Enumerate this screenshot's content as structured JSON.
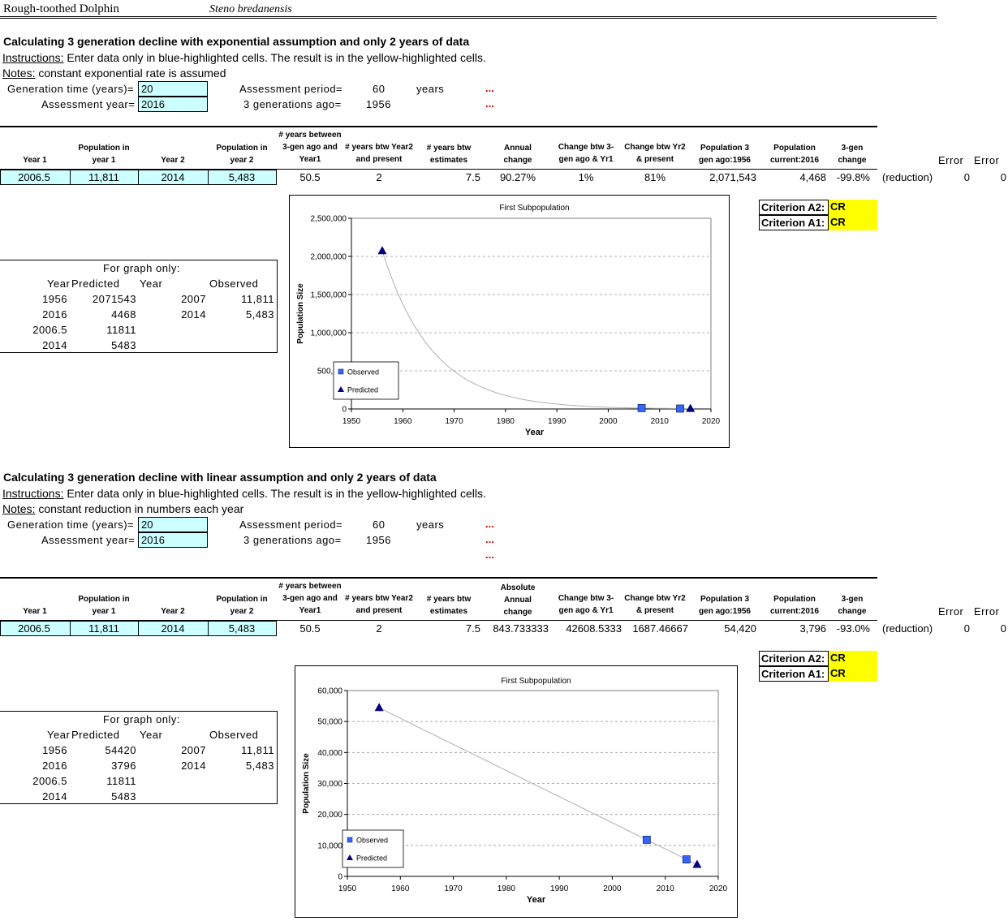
{
  "header": {
    "common_name": "Rough-toothed Dolphin",
    "scientific_name": "Steno bredanensis"
  },
  "labels": {
    "instructions_prefix": "Instructions:",
    "instructions_text": " Enter data only in blue-highlighted cells.  The result is in the yellow-highlighted cells.",
    "notes_prefix": "Notes:",
    "gen_time": "Generation time (years)=",
    "assess_year": "Assessment year=",
    "assess_period": "Assessment period=",
    "three_gen_ago": "3 generations ago=",
    "years": "years",
    "dots": "...",
    "error": "Error",
    "reduction": "(reduction)",
    "graph_only": "For graph only:",
    "g_year": "Year",
    "g_predicted": "Predicted",
    "g_observed": "Observed",
    "crit_a2": "Criterion A2:",
    "crit_a1": "Criterion A1:",
    "h_year1": "Year 1",
    "h_pop_y1_a": "Population in",
    "h_pop_y1_b": "year 1",
    "h_year2": "Year 2",
    "h_pop_y2_a": "Population in",
    "h_pop_y2_b": "year 2",
    "h_yrs_btw_a": "# years between",
    "h_yrs_btw_b": "3-gen ago and",
    "h_yrs_btw_c": "Year1",
    "h_yrs_y2_a": "# years btw Year2",
    "h_yrs_y2_b": "and present",
    "h_yrs_est_a": "# years btw",
    "h_yrs_est_b": "estimates",
    "h_annual_a": "Annual",
    "h_annual_b": "change",
    "h_abs": "Absolute",
    "h_chg3_a": "Change btw 3-",
    "h_chg3_b": "gen ago & Yr1",
    "h_chgy2_a": "Change btw Yr2",
    "h_chgy2_b": "& present",
    "h_pop3_a": "Population 3",
    "h_pop3_b": "gen ago:1956",
    "h_popc_a": "Population",
    "h_popc_b": "current:2016",
    "h_3gen_a": "3-gen",
    "h_3gen_b": "change"
  },
  "sections": [
    {
      "title": "Calculating 3 generation decline with exponential assumption and only 2 years of data",
      "notes": " constant exponential rate is assumed",
      "gen_time": "20",
      "assess_year": "2016",
      "assess_period": "60",
      "three_gen_ago": "1956",
      "row": {
        "year1": "2006.5",
        "pop1": "11,811",
        "year2": "2014",
        "pop2": "5,483",
        "yrs_btw": "50.5",
        "yrs_y2": "2",
        "yrs_est": "7.5",
        "annual": "90.27%",
        "chg3": "1%",
        "chgy2": "81%",
        "pop3": "2,071,543",
        "popc": "4,468",
        "gen3": "-99.8%",
        "err1": "0",
        "err2": "0"
      },
      "crit_a2": "CR",
      "crit_a1": "CR",
      "graph_table": [
        {
          "year": "1956",
          "predicted": "2071543",
          "year_obs": "2007",
          "observed": "11,811"
        },
        {
          "year": "2016",
          "predicted": "4468",
          "year_obs": "2014",
          "observed": "5,483"
        },
        {
          "year": "2006.5",
          "predicted": "11811",
          "year_obs": "",
          "observed": ""
        },
        {
          "year": "2014",
          "predicted": "5483",
          "year_obs": "",
          "observed": ""
        }
      ]
    },
    {
      "title": "Calculating 3 generation decline with linear assumption and only 2 years of data",
      "notes": " constant reduction in numbers each year",
      "gen_time": "20",
      "assess_year": "2016",
      "assess_period": "60",
      "three_gen_ago": "1956",
      "row": {
        "year1": "2006.5",
        "pop1": "11,811",
        "year2": "2014",
        "pop2": "5,483",
        "yrs_btw": "50.5",
        "yrs_y2": "2",
        "yrs_est": "7.5",
        "annual": "843.733333",
        "chg3": "42608.5333",
        "chgy2": "1687.46667",
        "pop3": "54,420",
        "popc": "3,796",
        "gen3": "-93.0%",
        "err1": "0",
        "err2": "0"
      },
      "crit_a2": "CR",
      "crit_a1": "CR",
      "graph_table": [
        {
          "year": "1956",
          "predicted": "54420",
          "year_obs": "2007",
          "observed": "11,811"
        },
        {
          "year": "2016",
          "predicted": "3796",
          "year_obs": "2014",
          "observed": "5,483"
        },
        {
          "year": "2006.5",
          "predicted": "11811",
          "year_obs": "",
          "observed": ""
        },
        {
          "year": "2014",
          "predicted": "5483",
          "year_obs": "",
          "observed": ""
        }
      ]
    }
  ],
  "chart_data": [
    {
      "type": "scatter",
      "title": "First Subpopulation",
      "xlabel": "Year",
      "ylabel": "Population Size",
      "xlim": [
        1950,
        2020
      ],
      "ylim": [
        0,
        2500000
      ],
      "xticks": [
        "1950",
        "1960",
        "1970",
        "1980",
        "1990",
        "2000",
        "2010",
        "2020"
      ],
      "yticks": [
        "0",
        "500,000",
        "1,000,000",
        "1,500,000",
        "2,000,000",
        "2,500,000"
      ],
      "grid": true,
      "legend_position": "bottom-left",
      "series": [
        {
          "name": "Observed",
          "marker": "square",
          "color": "#3366ff",
          "x": [
            2006.5,
            2014
          ],
          "y": [
            11811,
            5483
          ]
        },
        {
          "name": "Predicted",
          "marker": "triangle",
          "color": "#000080",
          "x": [
            1956,
            2016
          ],
          "y": [
            2071543,
            4468
          ]
        }
      ],
      "curve": "exponential"
    },
    {
      "type": "scatter",
      "title": "First Subpopulation",
      "xlabel": "Year",
      "ylabel": "Population Size",
      "xlim": [
        1950,
        2020
      ],
      "ylim": [
        0,
        60000
      ],
      "xticks": [
        "1950",
        "1960",
        "1970",
        "1980",
        "1990",
        "2000",
        "2010",
        "2020"
      ],
      "yticks": [
        "0",
        "10,000",
        "20,000",
        "30,000",
        "40,000",
        "50,000",
        "60,000"
      ],
      "grid": true,
      "legend_position": "bottom-left",
      "series": [
        {
          "name": "Observed",
          "marker": "square",
          "color": "#3366ff",
          "x": [
            2006.5,
            2014
          ],
          "y": [
            11811,
            5483
          ]
        },
        {
          "name": "Predicted",
          "marker": "triangle",
          "color": "#000080",
          "x": [
            1956,
            2016
          ],
          "y": [
            54420,
            3796
          ]
        }
      ],
      "curve": "linear"
    }
  ]
}
